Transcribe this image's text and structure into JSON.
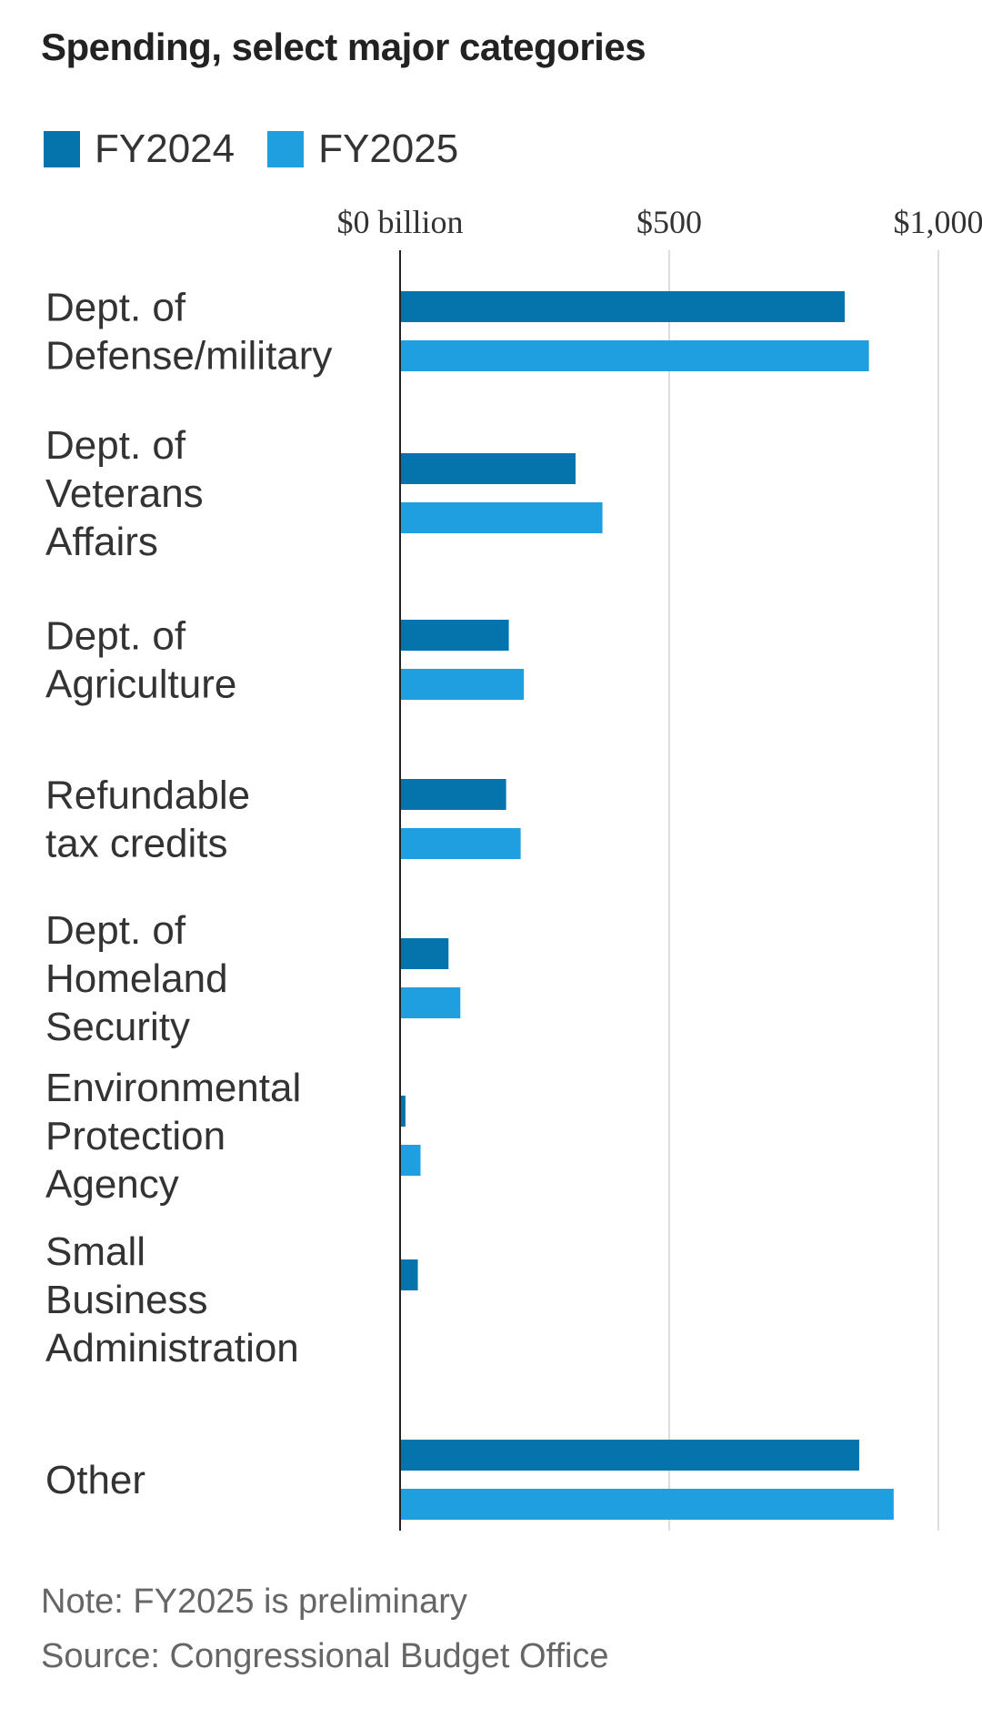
{
  "chart_data": {
    "type": "bar",
    "orientation": "horizontal",
    "title": "Spending, select major categories",
    "xlabel": "",
    "ylabel": "",
    "xlim": [
      0,
      1000
    ],
    "ticks": [
      {
        "value": 0,
        "label": "$0 billion"
      },
      {
        "value": 500,
        "label": "$500"
      },
      {
        "value": 1000,
        "label": "$1,000"
      }
    ],
    "grid": true,
    "legend_position": "top-left",
    "categories": [
      {
        "lines": [
          "Dept. of",
          "Defense/military"
        ]
      },
      {
        "lines": [
          "Dept. of",
          "Veterans",
          "Affairs"
        ]
      },
      {
        "lines": [
          "Dept. of",
          "Agriculture"
        ]
      },
      {
        "lines": [
          "Refundable",
          "tax credits"
        ]
      },
      {
        "lines": [
          "Dept. of",
          "Homeland",
          "Security"
        ]
      },
      {
        "lines": [
          "Environmental",
          "Protection",
          "Agency"
        ]
      },
      {
        "lines": [
          "Small",
          "Business",
          "Administration"
        ]
      },
      {
        "lines": [
          "Other"
        ]
      }
    ],
    "series": [
      {
        "name": "FY2024",
        "color": "#0574ad",
        "values": [
          826,
          326,
          202,
          197,
          90,
          10,
          33,
          853
        ]
      },
      {
        "name": "FY2025",
        "color": "#1f9ee0",
        "values": [
          871,
          376,
          230,
          224,
          112,
          38,
          null,
          917
        ]
      }
    ]
  },
  "footer": {
    "note": "Note: FY2025 is preliminary",
    "source": "Source: Congressional Budget Office"
  }
}
